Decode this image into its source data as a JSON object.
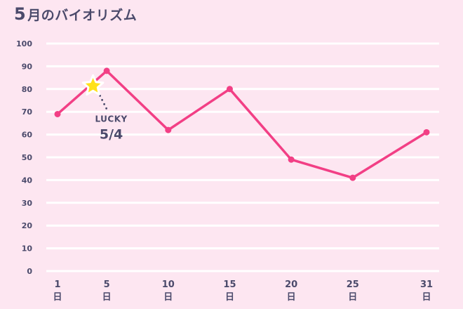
{
  "title": {
    "number": "5",
    "text": "月のバイオリズム"
  },
  "colors": {
    "background": "#fde6f1",
    "grid": "#ffffff",
    "line": "#f23f85",
    "text": "#4b4a6b",
    "star_fill": "#ffe11a",
    "star_stroke": "#ffffff"
  },
  "chart_data": {
    "type": "line",
    "title": "5月のバイオリズム",
    "x_unit": "日",
    "x_ticks": [
      1,
      5,
      10,
      15,
      20,
      25,
      31
    ],
    "ylim": [
      0,
      100
    ],
    "y_ticks": [
      0,
      10,
      20,
      30,
      40,
      50,
      60,
      70,
      80,
      90,
      100
    ],
    "grid": true,
    "legend": "none",
    "series": [
      {
        "x": [
          1,
          5,
          10,
          15,
          20,
          25,
          31
        ],
        "y": [
          69,
          88,
          62,
          80,
          49,
          41,
          61
        ]
      }
    ],
    "annotations": [
      {
        "icon": "star-icon",
        "label": "LUCKY",
        "date": "5/4",
        "x": 4,
        "y": 82
      }
    ]
  }
}
